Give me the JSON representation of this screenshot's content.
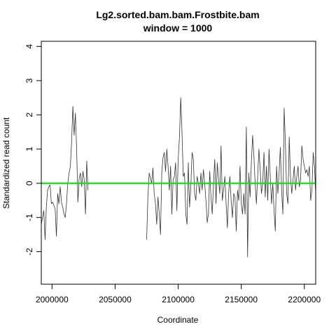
{
  "chart_data": {
    "type": "line",
    "title": "Lg2.sorted.bam.bam.Frostbite.bam",
    "subtitle": "window = 1000",
    "xlabel": "Coordinate",
    "ylabel": "Standardized read count",
    "xlim": [
      1991500,
      2209000
    ],
    "ylim": [
      -2.95,
      4.15
    ],
    "xticks": [
      2000000,
      2050000,
      2100000,
      2150000,
      2200000
    ],
    "xtick_labels": [
      "2000000",
      "2050000",
      "2100000",
      "2150000",
      "2200000"
    ],
    "yticks": [
      -2,
      -1,
      0,
      1,
      2,
      3,
      4
    ],
    "ytick_labels": [
      "-2",
      "-1",
      "0",
      "1",
      "2",
      "3",
      "4"
    ],
    "grid": false,
    "reference_line": {
      "y": 0,
      "color": "#00ee00"
    },
    "series": [
      {
        "color": "#333333",
        "segments": [
          [
            [
              1991500,
              -1.2
            ],
            [
              1992500,
              -1.0
            ],
            [
              1993500,
              -0.8
            ],
            [
              1994500,
              -1.65
            ],
            [
              1995500,
              -0.7
            ],
            [
              1996500,
              -0.2
            ],
            [
              1997500,
              -0.1
            ],
            [
              1998500,
              -0.05
            ],
            [
              1999500,
              -0.6
            ],
            [
              2000500,
              -0.55
            ],
            [
              2001500,
              -0.65
            ],
            [
              2002500,
              -0.75
            ],
            [
              2003500,
              -1.55
            ],
            [
              2004500,
              -0.3
            ],
            [
              2005500,
              -0.6
            ],
            [
              2006500,
              -0.1
            ],
            [
              2007500,
              -0.55
            ],
            [
              2008500,
              -0.7
            ],
            [
              2009500,
              -0.9
            ],
            [
              2010500,
              -1.0
            ],
            [
              2011500,
              -0.6
            ],
            [
              2012500,
              0.0
            ],
            [
              2013500,
              0.3
            ],
            [
              2014500,
              0.5
            ],
            [
              2015500,
              1.2
            ],
            [
              2016500,
              2.25
            ],
            [
              2017500,
              1.4
            ],
            [
              2018500,
              2.05
            ],
            [
              2019500,
              1.0
            ],
            [
              2020500,
              -0.55
            ],
            [
              2021500,
              0.15
            ],
            [
              2022500,
              0.3
            ],
            [
              2023500,
              -0.1
            ],
            [
              2024500,
              0.35
            ],
            [
              2025500,
              0.1
            ],
            [
              2026500,
              -0.9
            ],
            [
              2027500,
              0.65
            ],
            [
              2028500,
              -0.2
            ]
          ],
          [
            [
              2075000,
              -1.65
            ],
            [
              2076000,
              -0.4
            ],
            [
              2077000,
              0.3
            ],
            [
              2078000,
              0.15
            ],
            [
              2079000,
              0.0
            ],
            [
              2080000,
              0.45
            ],
            [
              2081000,
              -0.3
            ],
            [
              2082000,
              -0.6
            ],
            [
              2083000,
              -1.2
            ],
            [
              2084000,
              -0.4
            ],
            [
              2085000,
              -0.9
            ],
            [
              2086000,
              -1.5
            ],
            [
              2087000,
              0.3
            ],
            [
              2088000,
              0.75
            ],
            [
              2089000,
              0.9
            ],
            [
              2090000,
              0.35
            ],
            [
              2091000,
              1.0
            ],
            [
              2092000,
              0.5
            ],
            [
              2093000,
              -0.2
            ],
            [
              2094000,
              0.5
            ],
            [
              2095000,
              -0.9
            ],
            [
              2096000,
              0.1
            ],
            [
              2097000,
              0.2
            ],
            [
              2098000,
              0.6
            ],
            [
              2099000,
              -0.8
            ],
            [
              2100000,
              0.7
            ],
            [
              2101000,
              1.35
            ],
            [
              2102000,
              2.5
            ],
            [
              2103000,
              1.5
            ],
            [
              2104000,
              0.2
            ],
            [
              2105000,
              0.3
            ],
            [
              2106000,
              -0.9
            ],
            [
              2107000,
              -1.2
            ],
            [
              2108000,
              0.6
            ],
            [
              2109000,
              -0.7
            ],
            [
              2110000,
              -0.1
            ],
            [
              2111000,
              0.9
            ],
            [
              2112000,
              0.7
            ],
            [
              2113000,
              -0.3
            ],
            [
              2114000,
              -0.5
            ],
            [
              2115000,
              0.2
            ],
            [
              2116000,
              0.0
            ],
            [
              2117000,
              -0.3
            ],
            [
              2118000,
              0.3
            ],
            [
              2119000,
              -0.2
            ],
            [
              2120000,
              0.4
            ],
            [
              2121000,
              0.0
            ],
            [
              2122000,
              -0.5
            ],
            [
              2123000,
              -1.15
            ],
            [
              2124000,
              -0.9
            ],
            [
              2125000,
              0.35
            ],
            [
              2126000,
              -0.4
            ],
            [
              2127000,
              -0.9
            ],
            [
              2128000,
              0.0
            ],
            [
              2129000,
              0.7
            ],
            [
              2130000,
              -0.6
            ],
            [
              2131000,
              0.6
            ],
            [
              2132000,
              0.1
            ],
            [
              2133000,
              -0.3
            ],
            [
              2134000,
              1.1
            ],
            [
              2135000,
              -0.5
            ],
            [
              2136000,
              -0.2
            ],
            [
              2137000,
              0.2
            ],
            [
              2138000,
              -0.6
            ],
            [
              2139000,
              -1.3
            ],
            [
              2140000,
              -0.3
            ],
            [
              2141000,
              0.2
            ],
            [
              2142000,
              -0.5
            ],
            [
              2143000,
              -1.0
            ],
            [
              2144000,
              -0.3
            ],
            [
              2145000,
              -0.4
            ],
            [
              2146000,
              -1.4
            ],
            [
              2147000,
              -0.2
            ],
            [
              2148000,
              -0.5
            ],
            [
              2149000,
              0.5
            ],
            [
              2150000,
              -0.6
            ],
            [
              2151000,
              -0.9
            ],
            [
              2152000,
              -0.3
            ],
            [
              2153000,
              -0.9
            ],
            [
              2154000,
              1.65
            ],
            [
              2155000,
              -2.15
            ],
            [
              2156000,
              0.3
            ],
            [
              2157000,
              -0.4
            ],
            [
              2158000,
              0.6
            ],
            [
              2159000,
              1.4
            ],
            [
              2160000,
              0.8
            ],
            [
              2161000,
              0.0
            ],
            [
              2162000,
              -0.6
            ],
            [
              2163000,
              0.2
            ],
            [
              2164000,
              1.0
            ],
            [
              2165000,
              0.4
            ],
            [
              2166000,
              -0.3
            ],
            [
              2167000,
              0.0
            ],
            [
              2168000,
              0.9
            ],
            [
              2169000,
              -0.4
            ],
            [
              2170000,
              0.5
            ],
            [
              2171000,
              -0.5
            ],
            [
              2172000,
              1.0
            ],
            [
              2173000,
              0.2
            ],
            [
              2174000,
              -0.6
            ],
            [
              2175000,
              0.0
            ],
            [
              2176000,
              -0.8
            ],
            [
              2177000,
              -1.4
            ],
            [
              2178000,
              0.5
            ],
            [
              2179000,
              -0.3
            ],
            [
              2180000,
              0.3
            ],
            [
              2181000,
              1.05
            ],
            [
              2182000,
              -0.2
            ],
            [
              2183000,
              -0.9
            ],
            [
              2184000,
              2.2
            ],
            [
              2185000,
              1.2
            ],
            [
              2186000,
              -0.3
            ],
            [
              2187000,
              -0.6
            ],
            [
              2188000,
              1.35
            ],
            [
              2189000,
              0.2
            ],
            [
              2190000,
              -0.3
            ],
            [
              2191000,
              0.1
            ],
            [
              2192000,
              0.5
            ],
            [
              2193000,
              -0.2
            ],
            [
              2194000,
              0.2
            ],
            [
              2195000,
              0.5
            ],
            [
              2196000,
              -0.1
            ],
            [
              2197000,
              0.1
            ],
            [
              2198000,
              1.1
            ],
            [
              2199000,
              0.7
            ],
            [
              2200000,
              0.5
            ],
            [
              2201000,
              0.3
            ],
            [
              2202000,
              0.4
            ],
            [
              2203000,
              0.2
            ],
            [
              2204000,
              0.5
            ],
            [
              2205000,
              -0.5
            ],
            [
              2206000,
              -0.2
            ],
            [
              2207000,
              0.9
            ],
            [
              2208000,
              0.5
            ],
            [
              2209000,
              -0.3
            ]
          ]
        ]
      }
    ]
  }
}
